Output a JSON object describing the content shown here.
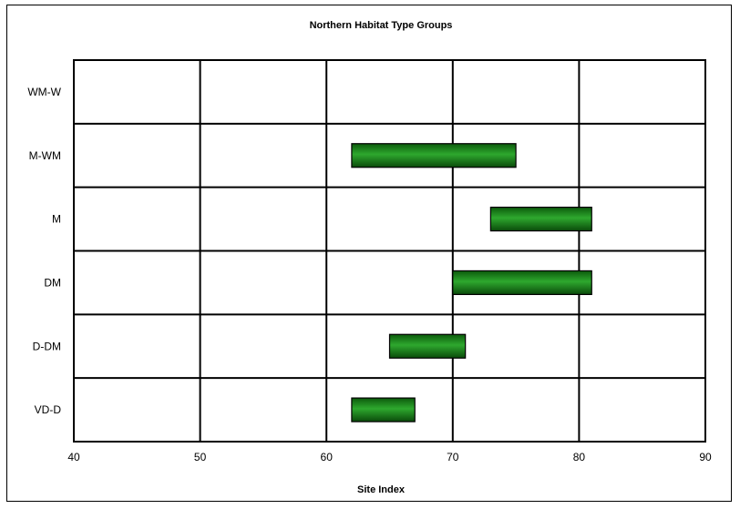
{
  "chart_data": {
    "type": "bar",
    "orientation": "horizontal-range",
    "title": "Northern Habitat Type Groups",
    "xlabel": "Site Index",
    "ylabel": "",
    "xlim": [
      40,
      90
    ],
    "xticks": [
      40,
      50,
      60,
      70,
      80,
      90
    ],
    "grid": true,
    "legend": "none",
    "categories": [
      "WM-W",
      "M-WM",
      "M",
      "DM",
      "D-DM",
      "VD-D"
    ],
    "series": [
      {
        "ranges": [
          null,
          [
            62,
            75
          ],
          [
            73,
            81
          ],
          [
            70,
            81
          ],
          [
            65,
            71
          ],
          [
            62,
            67
          ]
        ]
      }
    ],
    "bar_color": "#1e8a1e"
  }
}
